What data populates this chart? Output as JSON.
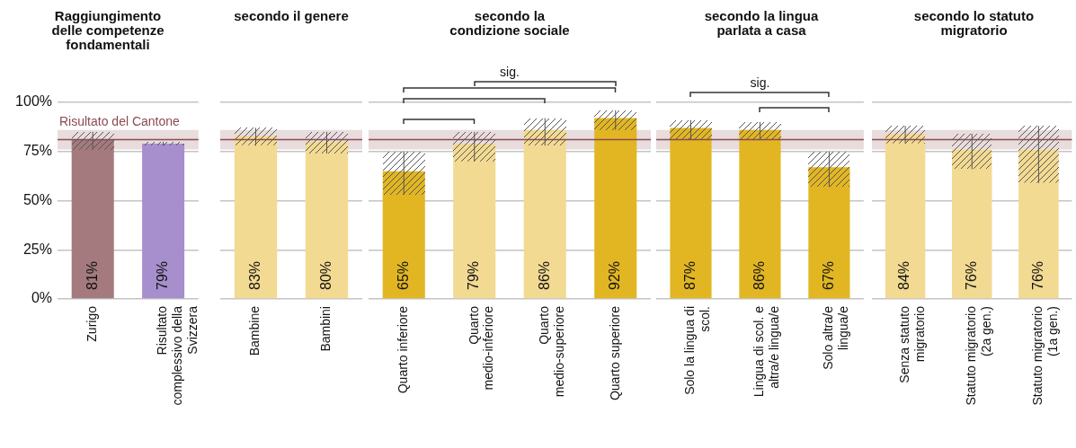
{
  "chart_data": [
    {
      "type": "bar",
      "title": "Raggiungimento delle competenze fondamentali",
      "categories": [
        "Zurigo",
        "Risultato complessivo della Svizzera"
      ],
      "values": [
        81,
        79
      ],
      "colors": [
        "#a47a7e",
        "#a68fcc"
      ],
      "errors": [
        [
          76,
          85
        ],
        [
          78,
          80
        ]
      ],
      "value_labels": [
        "81%",
        "79%"
      ],
      "ylim": [
        0,
        100
      ],
      "yticks": [
        {
          "value": 0,
          "label": "0%"
        },
        {
          "value": 25,
          "label": "25%"
        },
        {
          "value": 50,
          "label": "50%"
        },
        {
          "value": 75,
          "label": "75%"
        },
        {
          "value": 100,
          "label": "100%"
        }
      ],
      "grid": "y",
      "ref_lines": [
        {
          "axis": "y",
          "value": 81,
          "label": "Risultato del Cantone",
          "color": "#8c4a52"
        }
      ],
      "bands": [
        {
          "axis": "y",
          "from": 76,
          "to": 86,
          "color": "#e8dcdd"
        }
      ]
    },
    {
      "type": "bar",
      "title": "secondo il genere",
      "categories": [
        "Bambine",
        "Bambini"
      ],
      "values": [
        83,
        80
      ],
      "colors": [
        "#f3da92",
        "#f3da92"
      ],
      "errors": [
        [
          78,
          87
        ],
        [
          74,
          85
        ]
      ],
      "value_labels": [
        "83%",
        "80%"
      ],
      "ylim": [
        0,
        100
      ],
      "yticks": [
        0,
        25,
        50,
        75,
        100
      ],
      "tick_labels": "x",
      "grid": "y",
      "ref_lines": [
        {
          "axis": "y",
          "value": 81,
          "color": "#8c4a52"
        }
      ],
      "bands": [
        {
          "axis": "y",
          "from": 76,
          "to": 86,
          "color": "#e8dcdd"
        }
      ]
    },
    {
      "type": "bar",
      "title": "secondo la condizione sociale",
      "categories": [
        "Quarto inferiore",
        "Quarto medio-inferiore",
        "Quarto medio-superiore",
        "Quarto superiore"
      ],
      "values": [
        65,
        79,
        86,
        92
      ],
      "colors": [
        "#e2b623",
        "#f3da92",
        "#f3da92",
        "#e2b623"
      ],
      "errors": [
        [
          53,
          75
        ],
        [
          70,
          85
        ],
        [
          78,
          92
        ],
        [
          86,
          96
        ]
      ],
      "value_labels": [
        "65%",
        "79%",
        "86%",
        "92%"
      ],
      "ylim": [
        0,
        100
      ],
      "yticks": [
        0,
        25,
        50,
        75,
        100
      ],
      "tick_labels": "x",
      "grid": "y",
      "ref_lines": [
        {
          "axis": "y",
          "value": 81,
          "color": "#8c4a52"
        }
      ],
      "bands": [
        {
          "axis": "y",
          "from": 76,
          "to": 86,
          "color": "#e8dcdd"
        }
      ],
      "annotations": [
        "sig."
      ]
    },
    {
      "type": "bar",
      "title": "secondo la lingua parlata a casa",
      "categories": [
        "Solo la lingua di scol.",
        "Lingua di scol. e altra/e lingua/e",
        "Solo altra/e lingua/e"
      ],
      "values": [
        87,
        86,
        67
      ],
      "colors": [
        "#e2b623",
        "#e2b623",
        "#e2b623"
      ],
      "errors": [
        [
          81,
          91
        ],
        [
          81,
          90
        ],
        [
          57,
          75
        ]
      ],
      "value_labels": [
        "87%",
        "86%",
        "67%"
      ],
      "ylim": [
        0,
        100
      ],
      "yticks": [
        0,
        25,
        50,
        75,
        100
      ],
      "tick_labels": "x",
      "grid": "y",
      "ref_lines": [
        {
          "axis": "y",
          "value": 81,
          "color": "#8c4a52"
        }
      ],
      "bands": [
        {
          "axis": "y",
          "from": 76,
          "to": 86,
          "color": "#e8dcdd"
        }
      ],
      "annotations": [
        "sig."
      ]
    },
    {
      "type": "bar",
      "title": "secondo lo statuto migratorio",
      "categories": [
        "Senza statuto migratorio",
        "Statuto migratorio (2a gen.)",
        "Statuto migratorio (1a gen.)"
      ],
      "values": [
        84,
        76,
        76
      ],
      "colors": [
        "#f3da92",
        "#f3da92",
        "#f3da92"
      ],
      "errors": [
        [
          79,
          88
        ],
        [
          66,
          84
        ],
        [
          59,
          88
        ]
      ],
      "value_labels": [
        "84%",
        "76%",
        "76%"
      ],
      "ylim": [
        0,
        100
      ],
      "yticks": [
        0,
        25,
        50,
        75,
        100
      ],
      "tick_labels": "x",
      "grid": "y",
      "ref_lines": [
        {
          "axis": "y",
          "value": 81,
          "color": "#8c4a52"
        }
      ],
      "bands": [
        {
          "axis": "y",
          "from": 76,
          "to": 86,
          "color": "#e8dcdd"
        }
      ]
    }
  ]
}
